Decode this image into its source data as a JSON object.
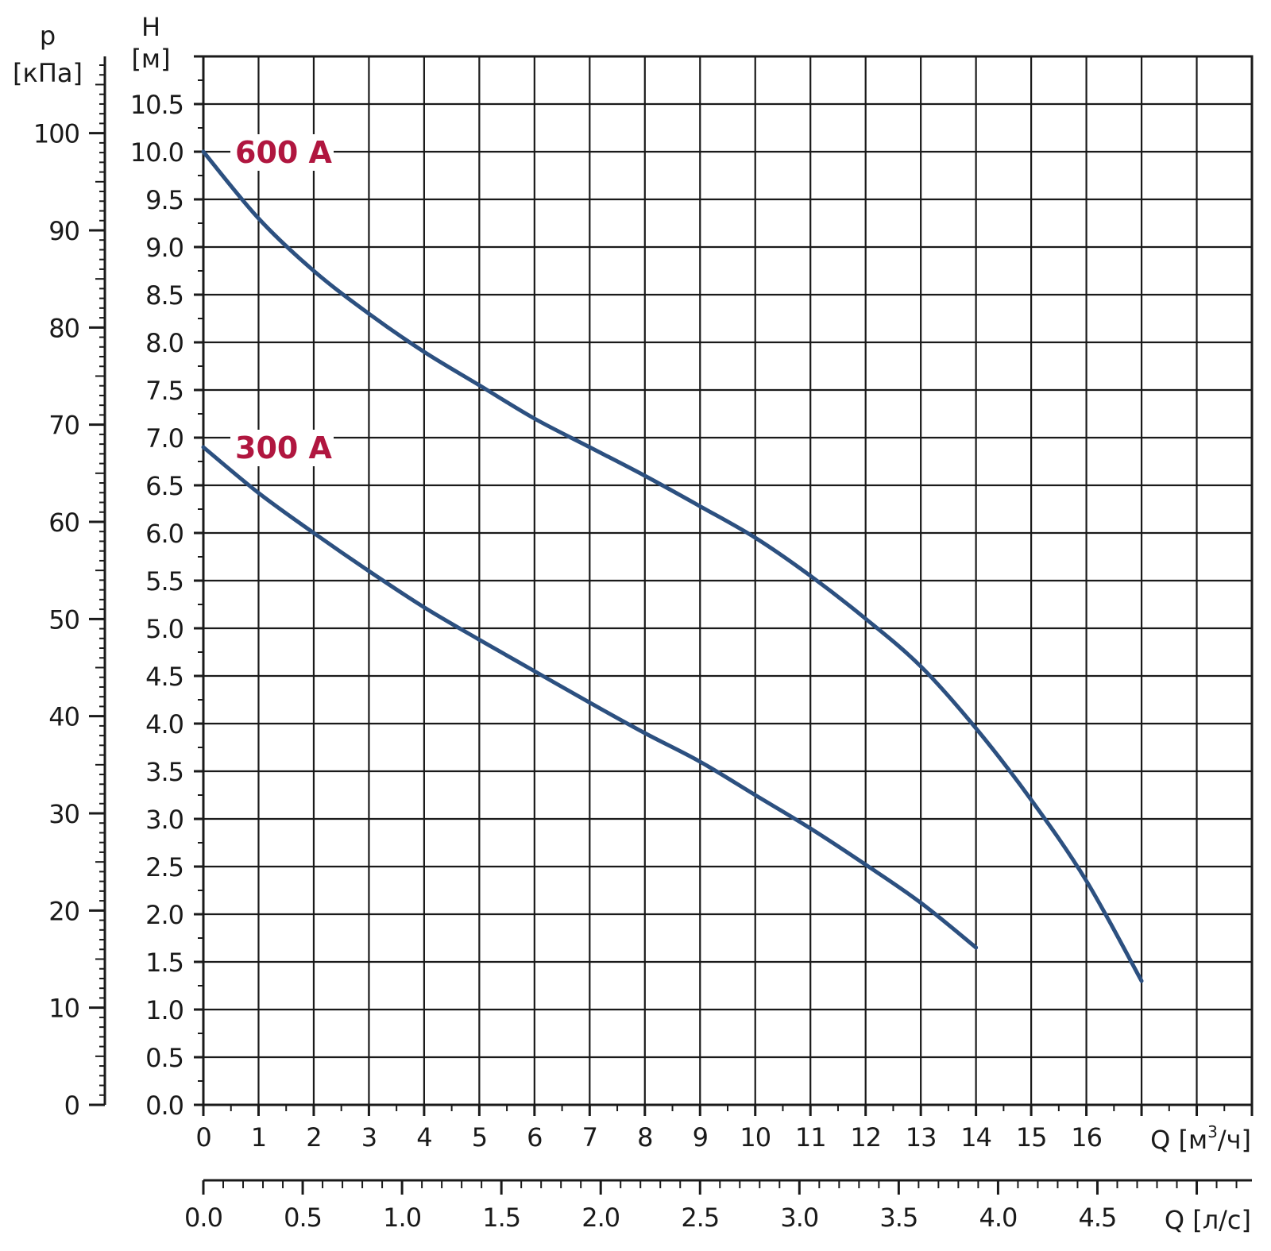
{
  "colors": {
    "curve": "#2c5080",
    "curve_label": "#b0163f",
    "grid": "#1a1a1a",
    "background": "#ffffff"
  },
  "chart_data": {
    "type": "line",
    "title": "",
    "grid": true,
    "x_axes": {
      "flow_m3h": {
        "label": "Q [м³/ч]",
        "label_main": "Q [м",
        "label_sup": "3",
        "label_tail": "/ч]",
        "range": [
          0,
          19
        ],
        "ticks": [
          0,
          1,
          2,
          3,
          4,
          5,
          6,
          7,
          8,
          9,
          10,
          11,
          12,
          13,
          14,
          15,
          16
        ],
        "tick_labels": [
          "0",
          "1",
          "2",
          "3",
          "4",
          "5",
          "6",
          "7",
          "8",
          "9",
          "10",
          "11",
          "12",
          "13",
          "14",
          "15",
          "16"
        ]
      },
      "flow_ls": {
        "label": "Q [л/с]",
        "range": [
          0,
          5.2778
        ],
        "ticks": [
          0,
          0.5,
          1.0,
          1.5,
          2.0,
          2.5,
          3.0,
          3.5,
          4.0,
          4.5
        ],
        "tick_labels": [
          "0.0",
          "0.5",
          "1.0",
          "1.5",
          "2.0",
          "2.5",
          "3.0",
          "3.5",
          "4.0",
          "4.5"
        ]
      }
    },
    "y_axes": {
      "head_m": {
        "label_top": "H",
        "label_unit": "[м]",
        "range": [
          0,
          11
        ],
        "ticks": [
          0,
          0.5,
          1.0,
          1.5,
          2.0,
          2.5,
          3.0,
          3.5,
          4.0,
          4.5,
          5.0,
          5.5,
          6.0,
          6.5,
          7.0,
          7.5,
          8.0,
          8.5,
          9.0,
          9.5,
          10.0,
          10.5
        ],
        "tick_labels": [
          "0.0",
          "0.5",
          "1.0",
          "1.5",
          "2.0",
          "2.5",
          "3.0",
          "3.5",
          "4.0",
          "4.5",
          "5.0",
          "5.5",
          "6.0",
          "6.5",
          "7.0",
          "7.5",
          "8.0",
          "8.5",
          "9.0",
          "9.5",
          "10.0",
          "10.5"
        ]
      },
      "pressure_kpa": {
        "label_top": "p",
        "label_unit": "[кПа]",
        "range": [
          0,
          107.9
        ],
        "ticks": [
          0,
          10,
          20,
          30,
          40,
          50,
          60,
          70,
          80,
          90,
          100
        ],
        "tick_labels": [
          "0",
          "10",
          "20",
          "30",
          "40",
          "50",
          "60",
          "70",
          "80",
          "90",
          "100"
        ]
      }
    },
    "series": [
      {
        "name": "600 A",
        "x": [
          0,
          1,
          2,
          3,
          4,
          5,
          6,
          7,
          8,
          9,
          10,
          11,
          12,
          13,
          14,
          15,
          16,
          17
        ],
        "y": [
          10.0,
          9.3,
          8.75,
          8.3,
          7.9,
          7.55,
          7.2,
          6.9,
          6.6,
          6.28,
          5.95,
          5.55,
          5.1,
          4.6,
          3.95,
          3.2,
          2.35,
          1.3
        ]
      },
      {
        "name": "300 A",
        "x": [
          0,
          1,
          2,
          3,
          4,
          5,
          6,
          7,
          8,
          9,
          10,
          11,
          12,
          13,
          14
        ],
        "y": [
          6.9,
          6.42,
          6.0,
          5.6,
          5.22,
          4.88,
          4.55,
          4.22,
          3.9,
          3.6,
          3.25,
          2.9,
          2.52,
          2.12,
          1.65
        ]
      }
    ]
  }
}
